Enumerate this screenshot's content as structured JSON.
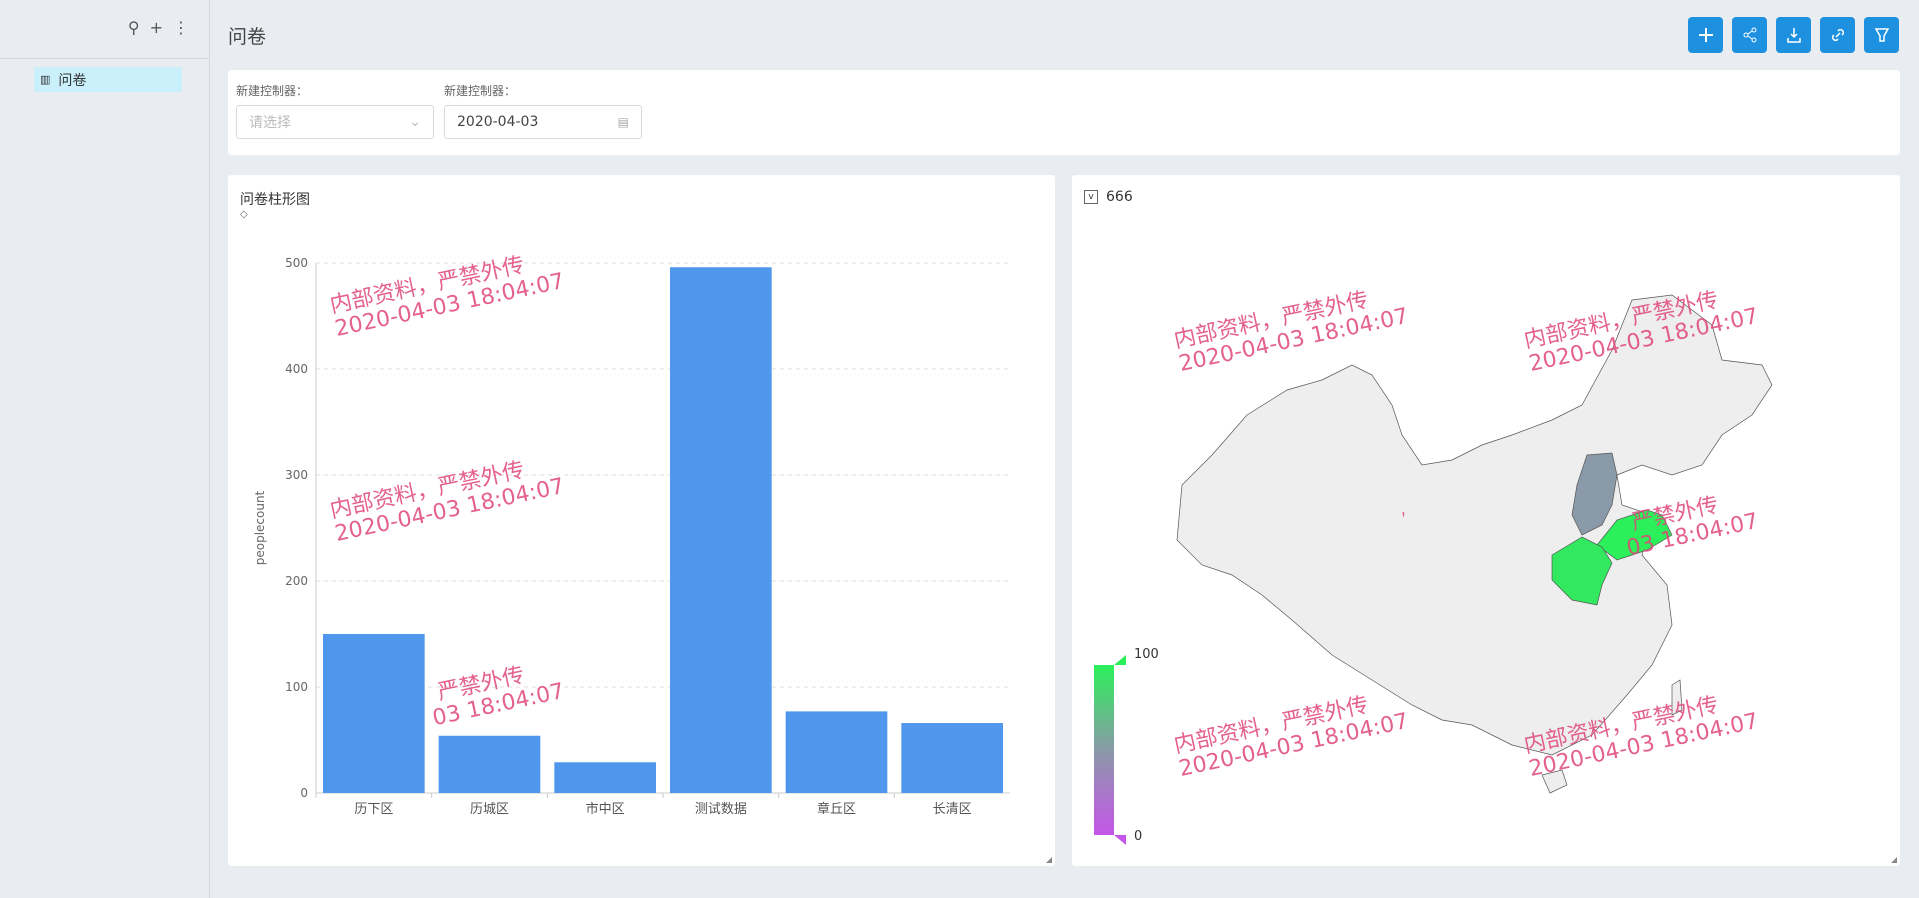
{
  "sidebar": {
    "items": [
      {
        "label": "问卷"
      }
    ]
  },
  "header": {
    "title": "问卷",
    "buttons": [
      "plus-icon",
      "share-icon",
      "download-icon",
      "link-icon",
      "filter-icon"
    ]
  },
  "filters": [
    {
      "label": "新建控制器：",
      "placeholder": "请选择"
    },
    {
      "label": "新建控制器：",
      "value": "2020-04-03"
    }
  ],
  "watermark": {
    "line1": "内部资料，严禁外传",
    "line2": "2020-04-03 18:04:07"
  },
  "bar_panel": {
    "title": "问卷柱形图"
  },
  "map_panel": {
    "title": "666",
    "visual_map": {
      "max": "100",
      "min": "0",
      "high_color": "#2bf05a",
      "low_color": "#c455e8"
    }
  },
  "chart_data": [
    {
      "type": "bar",
      "title": "问卷柱形图",
      "categories": [
        "历下区",
        "历城区",
        "市中区",
        "测试数据",
        "章丘区",
        "长清区"
      ],
      "values": [
        150,
        54,
        29,
        496,
        77,
        66
      ],
      "ylabel": "peoplecount",
      "ylim": [
        0,
        500
      ],
      "yticks": [
        "0",
        "100",
        "200",
        "300",
        "400",
        "500"
      ],
      "grid": true,
      "color": "#4f97ec"
    },
    {
      "type": "map",
      "title": "666",
      "regions": [
        {
          "name": "山东",
          "level": "high"
        },
        {
          "name": "河南",
          "level": "high"
        },
        {
          "name": "山西",
          "level": "mid"
        }
      ]
    }
  ]
}
